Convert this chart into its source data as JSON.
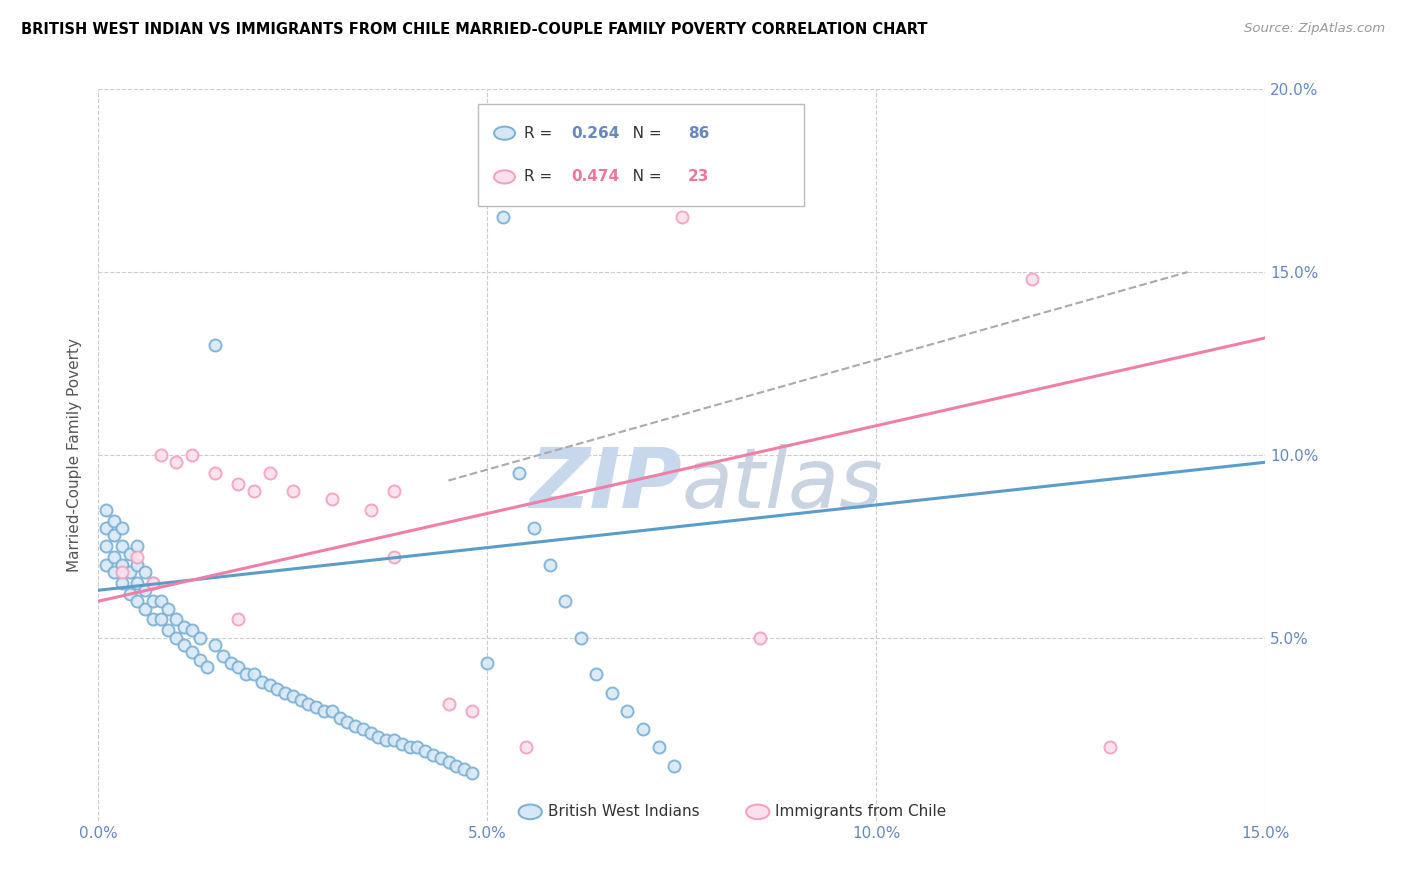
{
  "title": "BRITISH WEST INDIAN VS IMMIGRANTS FROM CHILE MARRIED-COUPLE FAMILY POVERTY CORRELATION CHART",
  "source": "Source: ZipAtlas.com",
  "ylabel": "Married-Couple Family Poverty",
  "xlim": [
    0,
    0.15
  ],
  "ylim": [
    0,
    0.2
  ],
  "legend1_R": "0.264",
  "legend1_N": "86",
  "legend2_R": "0.474",
  "legend2_N": "23",
  "blue_edge_color": "#7BAFD4",
  "blue_face_color": "#D6E8F5",
  "pink_edge_color": "#F4A0BB",
  "pink_face_color": "#FDE0EE",
  "blue_line_color": "#5B9DC9",
  "pink_line_color": "#F07FA8",
  "dashed_line_color": "#AAAAAA",
  "watermark_color": "#C8D8EC",
  "tick_color": "#6688BB",
  "grid_color": "#CCCCCC",
  "blue_x": [
    0.001,
    0.001,
    0.001,
    0.001,
    0.002,
    0.002,
    0.002,
    0.002,
    0.003,
    0.003,
    0.003,
    0.003,
    0.004,
    0.004,
    0.004,
    0.005,
    0.005,
    0.005,
    0.005,
    0.006,
    0.006,
    0.006,
    0.007,
    0.007,
    0.007,
    0.008,
    0.008,
    0.009,
    0.009,
    0.01,
    0.01,
    0.011,
    0.011,
    0.012,
    0.012,
    0.013,
    0.013,
    0.014,
    0.015,
    0.015,
    0.016,
    0.017,
    0.018,
    0.019,
    0.02,
    0.021,
    0.022,
    0.023,
    0.024,
    0.025,
    0.026,
    0.027,
    0.028,
    0.029,
    0.03,
    0.031,
    0.032,
    0.033,
    0.034,
    0.035,
    0.036,
    0.037,
    0.038,
    0.039,
    0.04,
    0.041,
    0.042,
    0.043,
    0.044,
    0.045,
    0.046,
    0.047,
    0.048,
    0.05,
    0.052,
    0.054,
    0.056,
    0.058,
    0.06,
    0.062,
    0.064,
    0.066,
    0.068,
    0.07,
    0.072,
    0.074
  ],
  "blue_y": [
    0.07,
    0.075,
    0.08,
    0.085,
    0.068,
    0.072,
    0.078,
    0.082,
    0.065,
    0.07,
    0.075,
    0.08,
    0.062,
    0.068,
    0.073,
    0.06,
    0.065,
    0.07,
    0.075,
    0.058,
    0.063,
    0.068,
    0.055,
    0.06,
    0.065,
    0.055,
    0.06,
    0.052,
    0.058,
    0.05,
    0.055,
    0.048,
    0.053,
    0.046,
    0.052,
    0.044,
    0.05,
    0.042,
    0.13,
    0.048,
    0.045,
    0.043,
    0.042,
    0.04,
    0.04,
    0.038,
    0.037,
    0.036,
    0.035,
    0.034,
    0.033,
    0.032,
    0.031,
    0.03,
    0.03,
    0.028,
    0.027,
    0.026,
    0.025,
    0.024,
    0.023,
    0.022,
    0.022,
    0.021,
    0.02,
    0.02,
    0.019,
    0.018,
    0.017,
    0.016,
    0.015,
    0.014,
    0.013,
    0.043,
    0.165,
    0.095,
    0.08,
    0.07,
    0.06,
    0.05,
    0.04,
    0.035,
    0.03,
    0.025,
    0.02,
    0.015
  ],
  "pink_x": [
    0.003,
    0.005,
    0.007,
    0.008,
    0.01,
    0.012,
    0.015,
    0.018,
    0.02,
    0.022,
    0.025,
    0.03,
    0.035,
    0.038,
    0.038,
    0.045,
    0.048,
    0.055,
    0.085,
    0.12,
    0.13,
    0.075,
    0.018
  ],
  "pink_y": [
    0.068,
    0.072,
    0.065,
    0.1,
    0.098,
    0.1,
    0.095,
    0.092,
    0.09,
    0.095,
    0.09,
    0.088,
    0.085,
    0.09,
    0.072,
    0.032,
    0.03,
    0.02,
    0.05,
    0.148,
    0.02,
    0.165,
    0.055
  ],
  "blue_reg": [
    0.0,
    0.15,
    0.063,
    0.098
  ],
  "pink_reg": [
    0.0,
    0.15,
    0.06,
    0.132
  ],
  "dashed_line": [
    0.045,
    0.14,
    0.093,
    0.15
  ]
}
